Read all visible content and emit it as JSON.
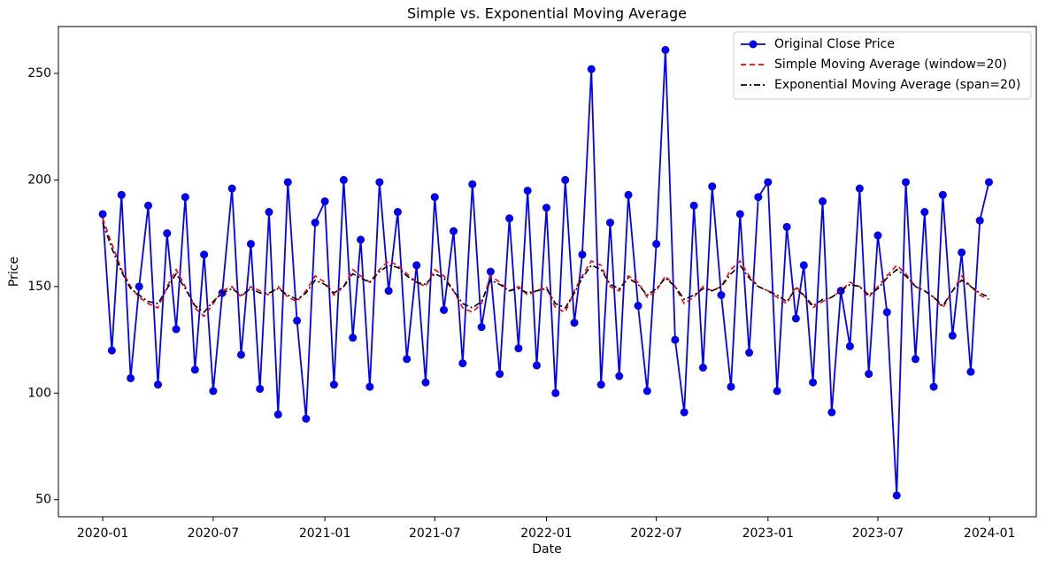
{
  "chart_data": {
    "type": "line",
    "title": "Simple vs. Exponential Moving Average",
    "xlabel": "Date",
    "ylabel": "Price",
    "x": [
      "2020-01-01",
      "2020-01-16",
      "2020-02-01",
      "2020-02-16",
      "2020-03-01",
      "2020-03-16",
      "2020-04-01",
      "2020-04-16",
      "2020-05-01",
      "2020-05-16",
      "2020-06-01",
      "2020-06-16",
      "2020-07-01",
      "2020-07-16",
      "2020-08-01",
      "2020-08-16",
      "2020-09-01",
      "2020-09-16",
      "2020-10-01",
      "2020-10-16",
      "2020-11-01",
      "2020-11-16",
      "2020-12-01",
      "2020-12-16",
      "2021-01-01",
      "2021-01-16",
      "2021-02-01",
      "2021-02-16",
      "2021-03-01",
      "2021-03-16",
      "2021-04-01",
      "2021-04-16",
      "2021-05-01",
      "2021-05-16",
      "2021-06-01",
      "2021-06-16",
      "2021-07-01",
      "2021-07-16",
      "2021-08-01",
      "2021-08-16",
      "2021-09-01",
      "2021-09-16",
      "2021-10-01",
      "2021-10-16",
      "2021-11-01",
      "2021-11-16",
      "2021-12-01",
      "2021-12-16",
      "2022-01-01",
      "2022-01-16",
      "2022-02-01",
      "2022-02-16",
      "2022-03-01",
      "2022-03-16",
      "2022-04-01",
      "2022-04-16",
      "2022-05-01",
      "2022-05-16",
      "2022-06-01",
      "2022-06-16",
      "2022-07-01",
      "2022-07-16",
      "2022-08-01",
      "2022-08-16",
      "2022-09-01",
      "2022-09-16",
      "2022-10-01",
      "2022-10-16",
      "2022-11-01",
      "2022-11-16",
      "2022-12-01",
      "2022-12-16",
      "2023-01-01",
      "2023-01-16",
      "2023-02-01",
      "2023-02-16",
      "2023-03-01",
      "2023-03-16",
      "2023-04-01",
      "2023-04-16",
      "2023-05-01",
      "2023-05-16",
      "2023-06-01",
      "2023-06-16",
      "2023-07-01",
      "2023-07-16",
      "2023-08-01",
      "2023-08-16",
      "2023-09-01",
      "2023-09-16",
      "2023-10-01",
      "2023-10-16",
      "2023-11-01",
      "2023-11-16",
      "2023-12-01",
      "2023-12-16",
      "2023-12-31"
    ],
    "series": [
      {
        "name": "Original Close Price",
        "color": "#0000ff",
        "linestyle": "solid",
        "marker": "o",
        "values": [
          184,
          120,
          193,
          107,
          150,
          188,
          104,
          175,
          130,
          192,
          111,
          165,
          101,
          147,
          196,
          118,
          170,
          102,
          185,
          90,
          199,
          134,
          88,
          180,
          190,
          104,
          200,
          126,
          172,
          103,
          199,
          148,
          185,
          116,
          160,
          105,
          192,
          139,
          176,
          114,
          198,
          131,
          157,
          109,
          182,
          121,
          195,
          113,
          187,
          100,
          200,
          133,
          165,
          252,
          104,
          180,
          108,
          193,
          141,
          101,
          170,
          261,
          125,
          91,
          188,
          112,
          197,
          146,
          103,
          184,
          119,
          192,
          199,
          101,
          178,
          135,
          160,
          105,
          190,
          91,
          148,
          122,
          196,
          109,
          174,
          138,
          52,
          199,
          116,
          185,
          103,
          193,
          127,
          166,
          110,
          181,
          199
        ]
      },
      {
        "name": "Simple Moving Average (window=20)",
        "color": "#ff0000",
        "linestyle": "dashed",
        "values": [
          182,
          170,
          158,
          150,
          145,
          142,
          140,
          150,
          158,
          150,
          140,
          136,
          142,
          148,
          150,
          145,
          150,
          148,
          146,
          150,
          145,
          143,
          148,
          155,
          152,
          146,
          150,
          158,
          155,
          152,
          158,
          162,
          160,
          156,
          152,
          150,
          158,
          155,
          148,
          140,
          138,
          142,
          155,
          152,
          148,
          150,
          146,
          148,
          150,
          140,
          138,
          148,
          155,
          162,
          160,
          150,
          148,
          155,
          152,
          145,
          148,
          155,
          150,
          142,
          145,
          150,
          148,
          150,
          158,
          162,
          155,
          150,
          148,
          145,
          142,
          150,
          146,
          140,
          143,
          145,
          148,
          152,
          150,
          145,
          150,
          155,
          160,
          156,
          150,
          148,
          145,
          140,
          148,
          155,
          150,
          146,
          144
        ]
      },
      {
        "name": "Exponential Moving Average (span=20)",
        "color": "#000000",
        "linestyle": "dashdot",
        "values": [
          180,
          168,
          157,
          149,
          146,
          143,
          142,
          149,
          156,
          149,
          141,
          138,
          143,
          147,
          149,
          146,
          149,
          147,
          147,
          149,
          146,
          144,
          147,
          153,
          151,
          147,
          150,
          156,
          154,
          152,
          157,
          160,
          159,
          155,
          152,
          151,
          156,
          154,
          148,
          142,
          140,
          143,
          153,
          151,
          148,
          149,
          147,
          148,
          149,
          142,
          140,
          147,
          154,
          160,
          158,
          151,
          149,
          154,
          151,
          146,
          149,
          154,
          150,
          144,
          146,
          149,
          148,
          150,
          156,
          160,
          154,
          150,
          148,
          146,
          143,
          149,
          146,
          141,
          144,
          145,
          148,
          151,
          150,
          146,
          149,
          154,
          158,
          155,
          150,
          148,
          145,
          141,
          148,
          153,
          150,
          147,
          145
        ]
      }
    ],
    "xlim": [
      "2019-10-20",
      "2024-03-18"
    ],
    "xticks": [
      {
        "value": "2020-01-01",
        "label": "2020-01"
      },
      {
        "value": "2020-07-01",
        "label": "2020-07"
      },
      {
        "value": "2021-01-01",
        "label": "2021-01"
      },
      {
        "value": "2021-07-01",
        "label": "2021-07"
      },
      {
        "value": "2022-01-01",
        "label": "2022-01"
      },
      {
        "value": "2022-07-01",
        "label": "2022-07"
      },
      {
        "value": "2023-01-01",
        "label": "2023-01"
      },
      {
        "value": "2023-07-01",
        "label": "2023-07"
      },
      {
        "value": "2024-01-01",
        "label": "2024-01"
      }
    ],
    "ylim": [
      42,
      272
    ],
    "yticks": [
      50,
      100,
      150,
      200,
      250
    ],
    "grid": false,
    "legend": "upper right"
  }
}
